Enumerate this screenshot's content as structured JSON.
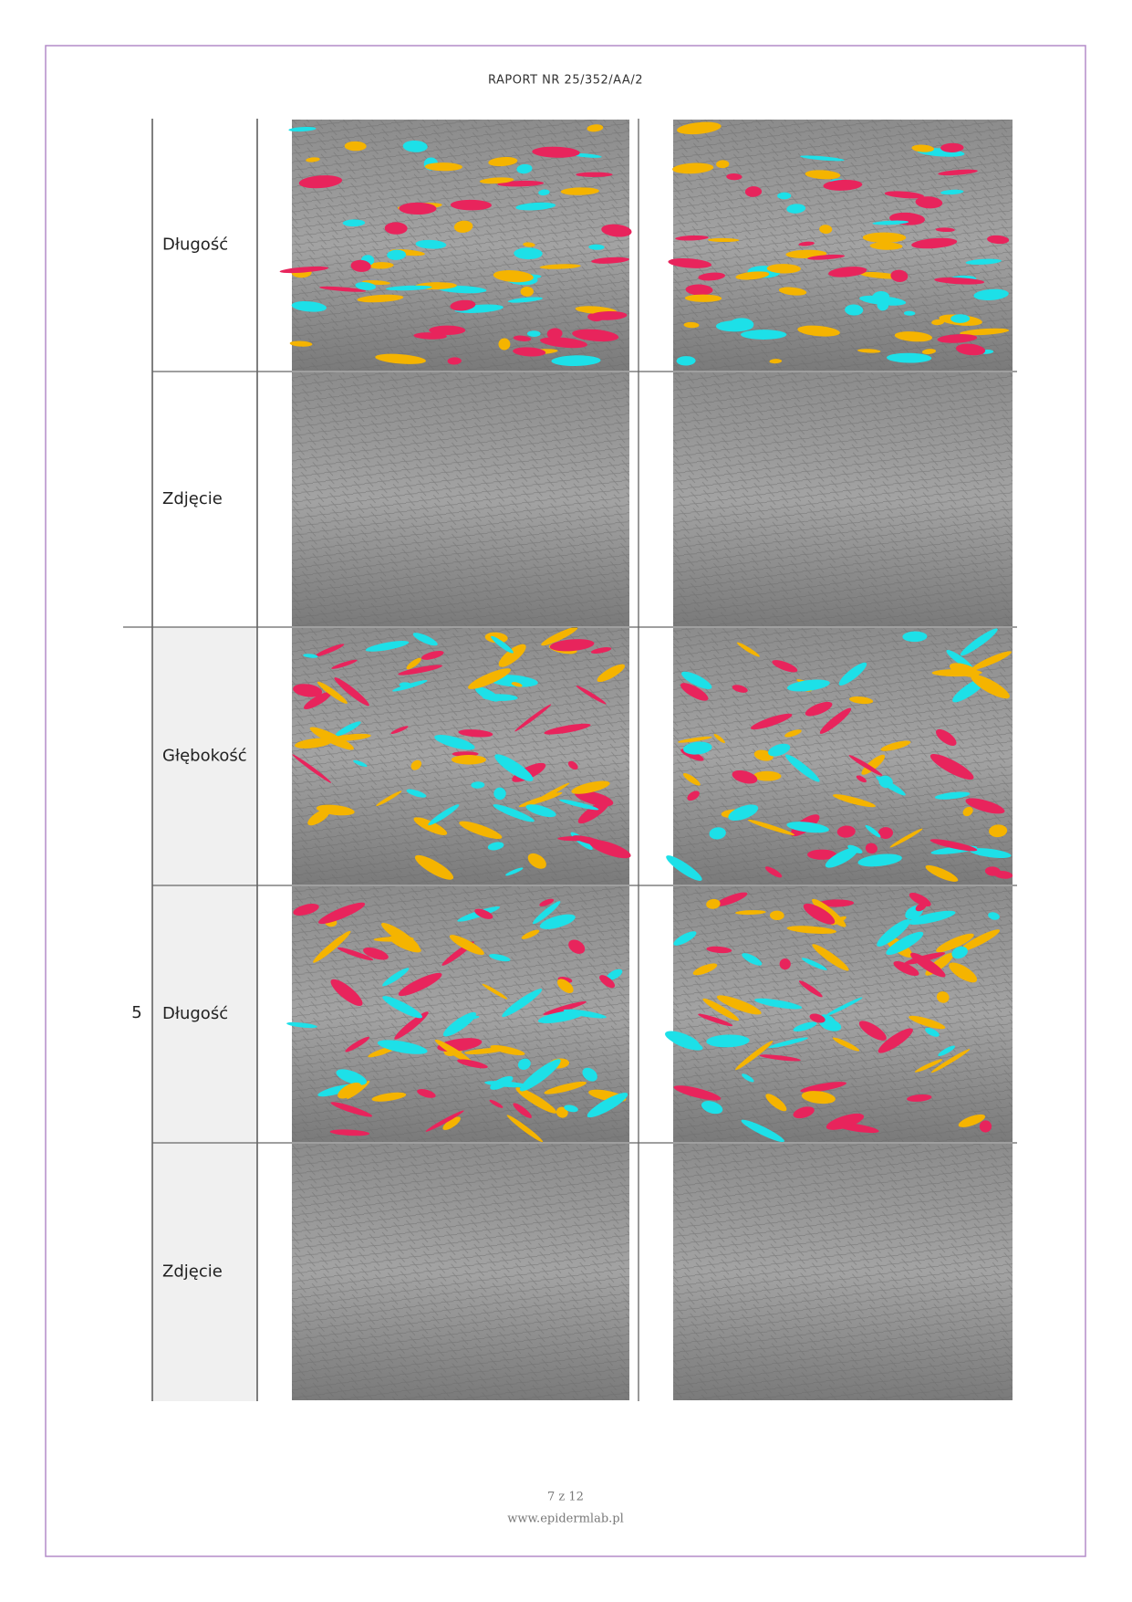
{
  "header": {
    "title": "RAPORT NR 25/352/AA/2"
  },
  "table": {
    "group_label": "5",
    "rows": [
      {
        "label": "Długość"
      },
      {
        "label": "Zdjęcie"
      },
      {
        "label": "Głębokość"
      },
      {
        "label": "Długość"
      },
      {
        "label": "Zdjęcie"
      }
    ]
  },
  "footer": {
    "page": "7 z 12",
    "website": "www.epidermlab.pl"
  }
}
